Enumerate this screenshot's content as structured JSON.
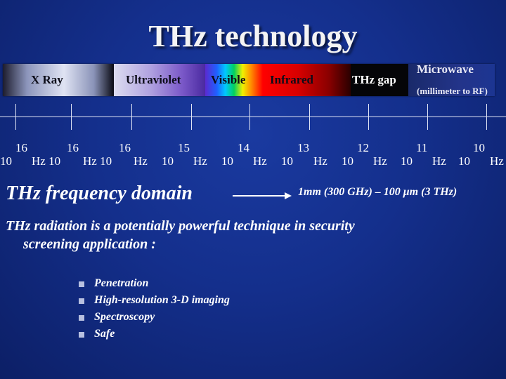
{
  "title": "THz technology",
  "spectrum": {
    "bands": [
      {
        "id": "xray",
        "label": "X Ray"
      },
      {
        "id": "uv",
        "label": "Ultraviolet"
      },
      {
        "id": "visible",
        "label": "Visible"
      },
      {
        "id": "infrared",
        "label": "Infrared"
      },
      {
        "id": "thz_gap",
        "label": "THz gap"
      },
      {
        "id": "microwave",
        "label": "Microwave",
        "sublabel": "(millimeter to RF)"
      }
    ]
  },
  "frequency_scale": {
    "exponents": [
      "16",
      "16",
      "16",
      "15",
      "14",
      "13",
      "12",
      "11",
      "10"
    ],
    "base_labels": [
      "10",
      "Hz 10",
      "Hz 10",
      "Hz",
      "10",
      "Hz",
      "10",
      "Hz",
      "10",
      "Hz",
      "10",
      "Hz",
      "10",
      "Hz",
      "10",
      "Hz",
      "10",
      "Hz"
    ]
  },
  "domain_heading": "THz frequency domain",
  "domain_range": "1mm (300 GHz) – 100 μm (3 THz)",
  "statement": {
    "line1": "THz radiation is a potentially powerful technique in security",
    "line2": "screening application :"
  },
  "applications": [
    "Penetration",
    "High-resolution 3-D imaging",
    "Spectroscopy",
    "Safe"
  ],
  "colors": {
    "background": "#142f8c",
    "thz_gap": "#050508",
    "infrared": "#d80000"
  }
}
